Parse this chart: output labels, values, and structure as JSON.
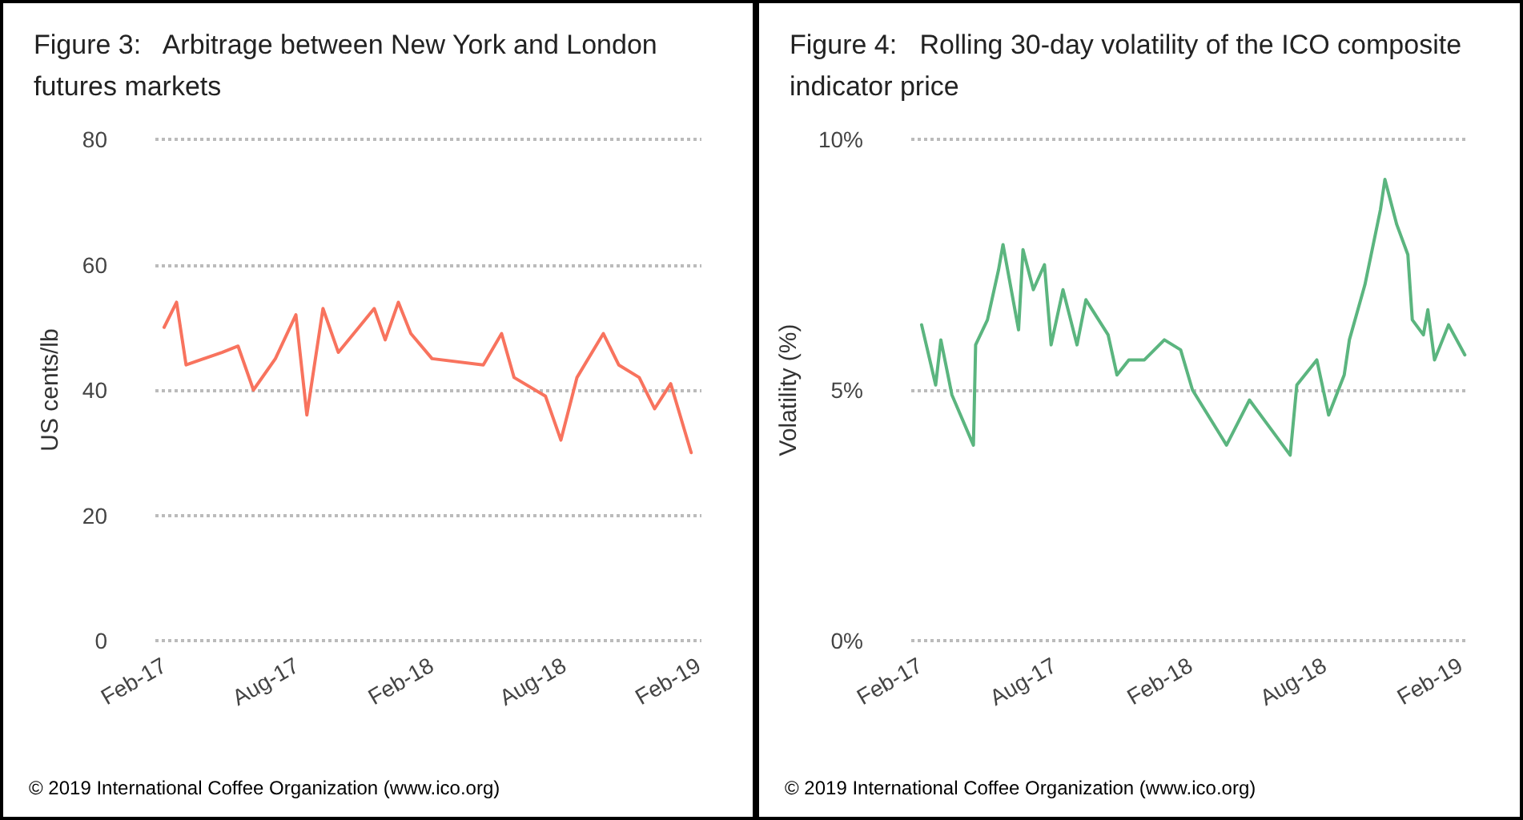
{
  "chart_data": [
    {
      "type": "line",
      "title": "Figure 3:   Arbitrage between New York and London futures markets",
      "ylabel": "US cents/lb",
      "color": "#f8735e",
      "x": [
        "2017-02-01",
        "2017-02-18",
        "2017-03-03",
        "2017-04-21",
        "2017-05-13",
        "2017-06-03",
        "2017-07-03",
        "2017-07-31",
        "2017-08-15",
        "2017-09-06",
        "2017-09-27",
        "2017-10-25",
        "2017-11-15",
        "2017-11-30",
        "2017-12-18",
        "2018-01-04",
        "2018-02-02",
        "2018-04-13",
        "2018-05-08",
        "2018-05-25",
        "2018-07-07",
        "2018-07-28",
        "2018-08-19",
        "2018-09-24",
        "2018-10-15",
        "2018-11-12",
        "2018-12-03",
        "2018-12-25",
        "2019-01-22"
      ],
      "values": [
        50,
        54,
        44,
        46,
        47,
        40,
        45,
        52,
        36,
        53,
        46,
        50,
        53,
        48,
        54,
        49,
        45,
        44,
        49,
        42,
        39,
        32,
        42,
        49,
        44,
        42,
        37,
        41,
        30
      ],
      "xlim": [
        "2017-01-20",
        "2019-02-05"
      ],
      "ylim": [
        0,
        80
      ],
      "yticks": [
        0,
        20,
        40,
        60,
        80
      ],
      "xticks": [
        {
          "value": "2017-02-01",
          "label": "Feb-17"
        },
        {
          "value": "2017-08-01",
          "label": "Aug-17"
        },
        {
          "value": "2018-02-01",
          "label": "Feb-18"
        },
        {
          "value": "2018-08-01",
          "label": "Aug-18"
        },
        {
          "value": "2019-02-01",
          "label": "Feb-19"
        }
      ],
      "grid": "y",
      "marker": "none",
      "line_style": "solid",
      "annotations": [
        "© 2019 International Coffee Organization (www.ico.org)"
      ]
    },
    {
      "type": "line",
      "title": "Figure 4:   Rolling 30-day volatility of the ICO composite indicator price",
      "ylabel": "Volatility (%)",
      "color": "#5bb57f",
      "x": [
        "2017-02-03",
        "2017-02-22",
        "2017-03-01",
        "2017-03-16",
        "2017-04-14",
        "2017-04-17",
        "2017-05-03",
        "2017-05-18",
        "2017-05-24",
        "2017-06-14",
        "2017-06-20",
        "2017-07-04",
        "2017-07-19",
        "2017-07-28",
        "2017-08-13",
        "2017-09-01",
        "2017-09-13",
        "2017-10-13",
        "2017-10-25",
        "2017-11-10",
        "2017-12-01",
        "2017-12-28",
        "2018-01-19",
        "2018-02-04",
        "2018-03-22",
        "2018-04-22",
        "2018-06-16",
        "2018-06-25",
        "2018-07-22",
        "2018-08-07",
        "2018-08-28",
        "2018-09-04",
        "2018-09-25",
        "2018-10-16",
        "2018-10-22",
        "2018-11-07",
        "2018-11-22",
        "2018-11-28",
        "2018-12-13",
        "2018-12-19",
        "2018-12-28",
        "2019-01-16",
        "2019-02-07"
      ],
      "values": [
        6.3,
        5.1,
        6.0,
        4.9,
        3.9,
        5.9,
        6.4,
        7.4,
        7.9,
        6.2,
        7.8,
        7.0,
        7.5,
        5.9,
        7.0,
        5.9,
        6.8,
        6.1,
        5.3,
        5.6,
        5.6,
        6.0,
        5.8,
        5.0,
        3.9,
        4.8,
        3.7,
        5.1,
        5.6,
        4.5,
        5.3,
        6.0,
        7.1,
        8.6,
        9.2,
        8.3,
        7.7,
        6.4,
        6.1,
        6.6,
        5.6,
        6.3,
        5.7
      ],
      "xlim": [
        "2017-01-20",
        "2019-02-12"
      ],
      "ylim": [
        0,
        10
      ],
      "yticks": [
        {
          "value": 0,
          "label": "0%"
        },
        {
          "value": 5,
          "label": "5%"
        },
        {
          "value": 10,
          "label": "10%"
        }
      ],
      "xticks": [
        {
          "value": "2017-02-01",
          "label": "Feb-17"
        },
        {
          "value": "2017-08-01",
          "label": "Aug-17"
        },
        {
          "value": "2018-02-01",
          "label": "Feb-18"
        },
        {
          "value": "2018-08-01",
          "label": "Aug-18"
        },
        {
          "value": "2019-02-01",
          "label": "Feb-19"
        }
      ],
      "grid": "y",
      "marker": "none",
      "line_style": "solid",
      "annotations": [
        "© 2019 International Coffee Organization (www.ico.org)"
      ]
    }
  ]
}
